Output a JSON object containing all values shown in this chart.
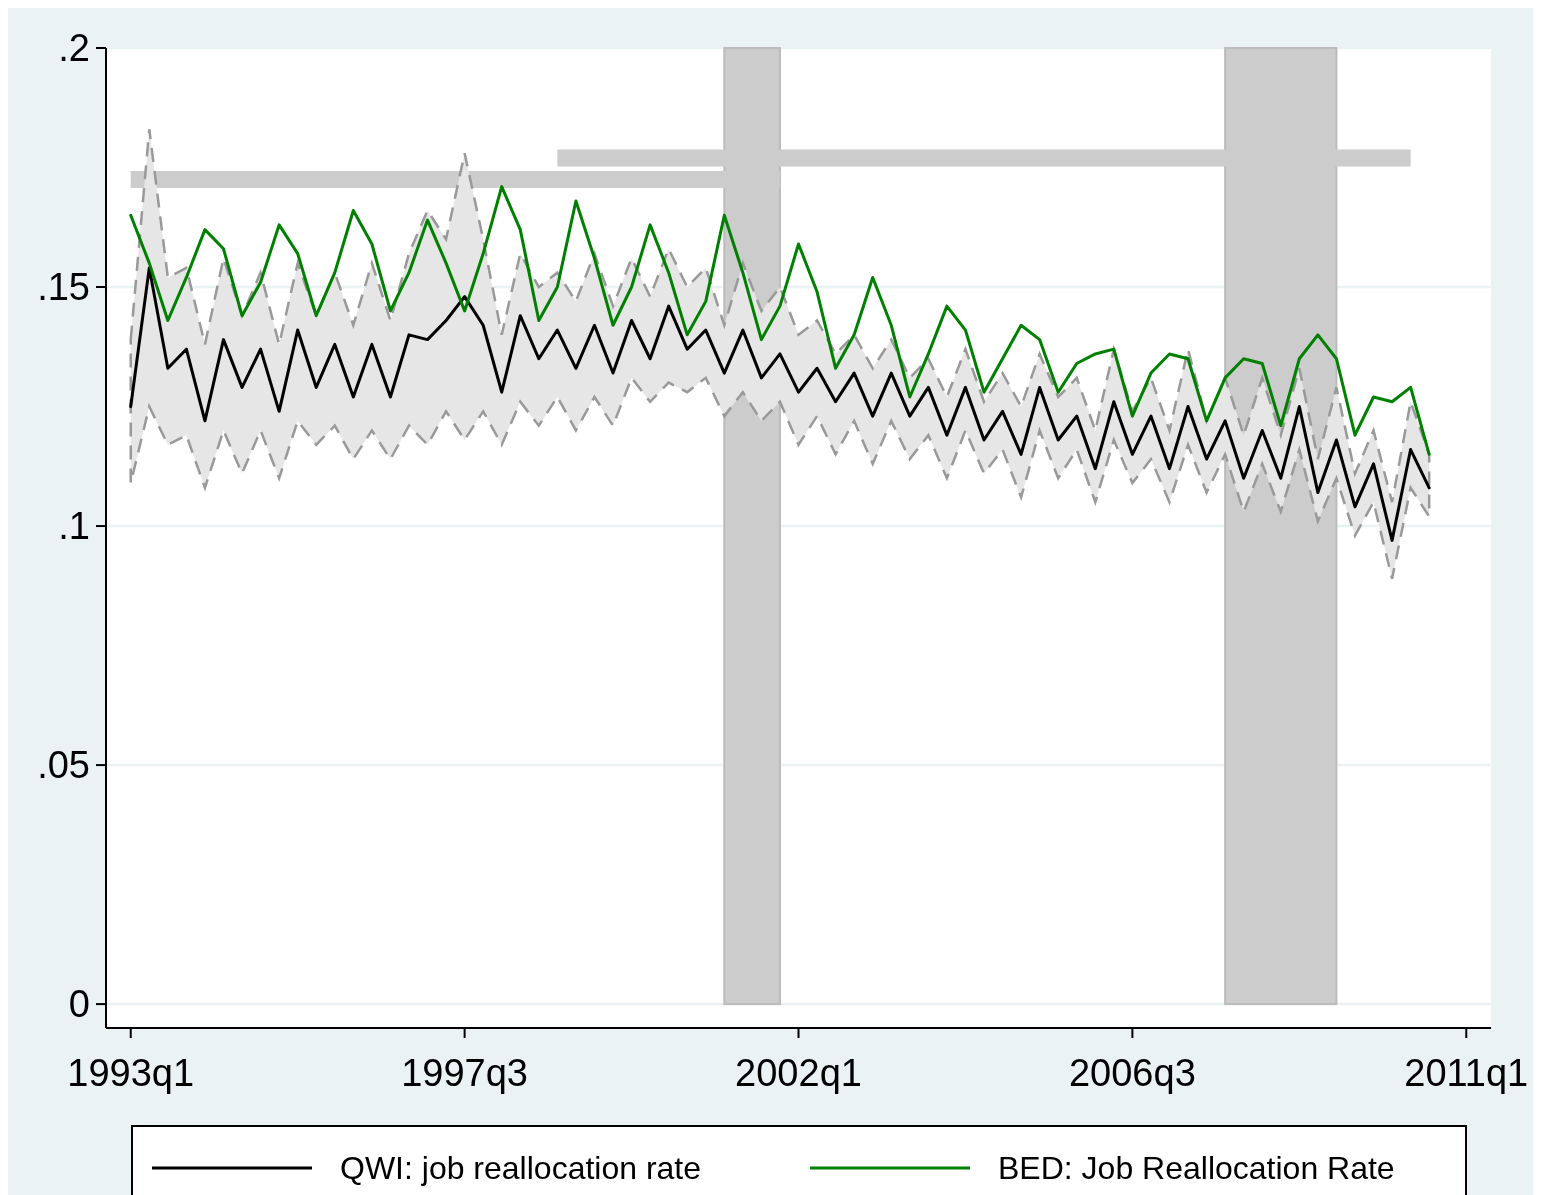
{
  "chart_data": {
    "type": "line",
    "x": [
      "1993-01",
      "1993-04",
      "1993-07",
      "1993-10",
      "1994-01",
      "1994-04",
      "1994-07",
      "1994-10",
      "1995-01",
      "1995-04",
      "1995-07",
      "1995-10",
      "1996-01",
      "1996-04",
      "1996-07",
      "1996-10",
      "1997-01",
      "1997-04",
      "1997-07",
      "1997-10",
      "1998-01",
      "1998-04",
      "1998-07",
      "1998-10",
      "1999-01",
      "1999-04",
      "1999-07",
      "1999-10",
      "2000-01",
      "2000-04",
      "2000-07",
      "2000-10",
      "2001-01",
      "2001-04",
      "2001-07",
      "2001-10",
      "2002-01",
      "2002-04",
      "2002-07",
      "2002-10",
      "2003-01",
      "2003-04",
      "2003-07",
      "2003-10",
      "2004-01",
      "2004-04",
      "2004-07",
      "2004-10",
      "2005-01",
      "2005-04",
      "2005-07",
      "2005-10",
      "2006-01",
      "2006-04",
      "2006-07",
      "2006-10",
      "2007-01",
      "2007-04",
      "2007-07",
      "2007-10",
      "2008-01",
      "2008-04",
      "2008-07",
      "2008-10",
      "2009-01",
      "2009-04",
      "2009-07",
      "2009-10",
      "2010-01",
      "2010-04",
      "2010-07"
    ],
    "series": [
      {
        "name": "QWI: job reallocation rate",
        "color": "#000000",
        "values": [
          0.125,
          0.154,
          0.133,
          0.137,
          0.122,
          0.139,
          0.129,
          0.137,
          0.124,
          0.141,
          0.129,
          0.138,
          0.127,
          0.138,
          0.127,
          0.14,
          0.139,
          0.143,
          0.148,
          0.142,
          0.128,
          0.144,
          0.135,
          0.141,
          0.133,
          0.142,
          0.132,
          0.143,
          0.135,
          0.146,
          0.137,
          0.141,
          0.132,
          0.141,
          0.131,
          0.136,
          0.128,
          0.133,
          0.126,
          0.132,
          0.123,
          0.132,
          0.123,
          0.129,
          0.119,
          0.129,
          0.118,
          0.124,
          0.115,
          0.129,
          0.118,
          0.123,
          0.112,
          0.126,
          0.115,
          0.123,
          0.112,
          0.125,
          0.114,
          0.122,
          0.11,
          0.12,
          0.11,
          0.125,
          0.107,
          0.118,
          0.104,
          0.113,
          0.097,
          0.116,
          0.108
        ],
        "upper": [
          0.139,
          0.183,
          0.152,
          0.154,
          0.138,
          0.156,
          0.144,
          0.153,
          0.138,
          0.155,
          0.144,
          0.153,
          0.142,
          0.155,
          0.143,
          0.157,
          0.166,
          0.16,
          0.178,
          0.16,
          0.14,
          0.157,
          0.15,
          0.153,
          0.147,
          0.157,
          0.146,
          0.156,
          0.148,
          0.158,
          0.15,
          0.154,
          0.142,
          0.155,
          0.145,
          0.15,
          0.14,
          0.143,
          0.136,
          0.14,
          0.133,
          0.139,
          0.131,
          0.135,
          0.127,
          0.137,
          0.126,
          0.132,
          0.125,
          0.136,
          0.127,
          0.131,
          0.12,
          0.137,
          0.124,
          0.131,
          0.12,
          0.137,
          0.122,
          0.131,
          0.119,
          0.131,
          0.119,
          0.133,
          0.114,
          0.129,
          0.111,
          0.12,
          0.105,
          0.126,
          0.115
        ],
        "lower": [
          0.109,
          0.125,
          0.117,
          0.119,
          0.108,
          0.12,
          0.111,
          0.12,
          0.11,
          0.122,
          0.117,
          0.121,
          0.114,
          0.12,
          0.114,
          0.121,
          0.117,
          0.124,
          0.118,
          0.124,
          0.117,
          0.126,
          0.121,
          0.127,
          0.12,
          0.127,
          0.121,
          0.131,
          0.126,
          0.13,
          0.128,
          0.131,
          0.123,
          0.128,
          0.122,
          0.126,
          0.117,
          0.123,
          0.115,
          0.122,
          0.113,
          0.122,
          0.114,
          0.119,
          0.11,
          0.12,
          0.111,
          0.116,
          0.106,
          0.12,
          0.11,
          0.116,
          0.105,
          0.118,
          0.109,
          0.114,
          0.105,
          0.117,
          0.107,
          0.115,
          0.103,
          0.113,
          0.103,
          0.116,
          0.101,
          0.11,
          0.098,
          0.105,
          0.089,
          0.108,
          0.102
        ]
      },
      {
        "name": "BED: Job Reallocation Rate",
        "color": "#008000",
        "values": [
          0.165,
          0.155,
          0.143,
          0.152,
          0.162,
          0.158,
          0.144,
          0.151,
          0.163,
          0.157,
          0.144,
          0.153,
          0.166,
          0.159,
          0.145,
          0.153,
          0.164,
          0.155,
          0.145,
          0.157,
          0.171,
          0.162,
          0.143,
          0.15,
          0.168,
          0.156,
          0.142,
          0.15,
          0.163,
          0.153,
          0.14,
          0.147,
          0.165,
          0.153,
          0.139,
          0.146,
          0.159,
          0.149,
          0.133,
          0.14,
          0.152,
          0.142,
          0.127,
          0.136,
          0.146,
          0.141,
          0.128,
          0.135,
          0.142,
          0.139,
          0.128,
          0.134,
          0.136,
          0.137,
          0.123,
          0.132,
          0.136,
          0.135,
          0.122,
          0.131,
          0.135,
          0.134,
          0.121,
          0.135,
          0.14,
          0.135,
          0.119,
          0.127,
          0.126,
          0.129,
          0.115
        ]
      },
      {
        "color": "#cccccc",
        "x": [
          "1993-01",
          "2001-10"
        ],
        "values": [
          0.1725,
          0.1725
        ]
      },
      {
        "color": "#cccccc",
        "x": [
          "1998-10",
          "2010-04"
        ],
        "values": [
          0.177,
          0.177
        ]
      }
    ],
    "bands": [
      {
        "axis": "x",
        "from": "2001-01",
        "to": "2001-10",
        "color": "#cccccc"
      },
      {
        "axis": "x",
        "from": "2007-10",
        "to": "2009-04",
        "color": "#cccccc"
      }
    ],
    "xlim": [
      "1992-09",
      "2011-05"
    ],
    "xticks": [
      {
        "value": "1993-01",
        "label": "1993q1"
      },
      {
        "value": "1997-07",
        "label": "1997q3"
      },
      {
        "value": "2002-01",
        "label": "2002q1"
      },
      {
        "value": "2006-07",
        "label": "2006q3"
      },
      {
        "value": "2011-01",
        "label": "2011q1"
      }
    ],
    "ylim": [
      -0.005,
      0.2
    ],
    "yticks": [
      0,
      {
        "value": 0.05,
        "label": ".05"
      },
      {
        "value": 0.1,
        "label": ".1"
      },
      {
        "value": 0.15,
        "label": ".15"
      },
      {
        "value": 0.2,
        "label": ".2"
      }
    ],
    "grid": "y",
    "legend": "bottom",
    "line_style": "solid",
    "marker": "none"
  }
}
